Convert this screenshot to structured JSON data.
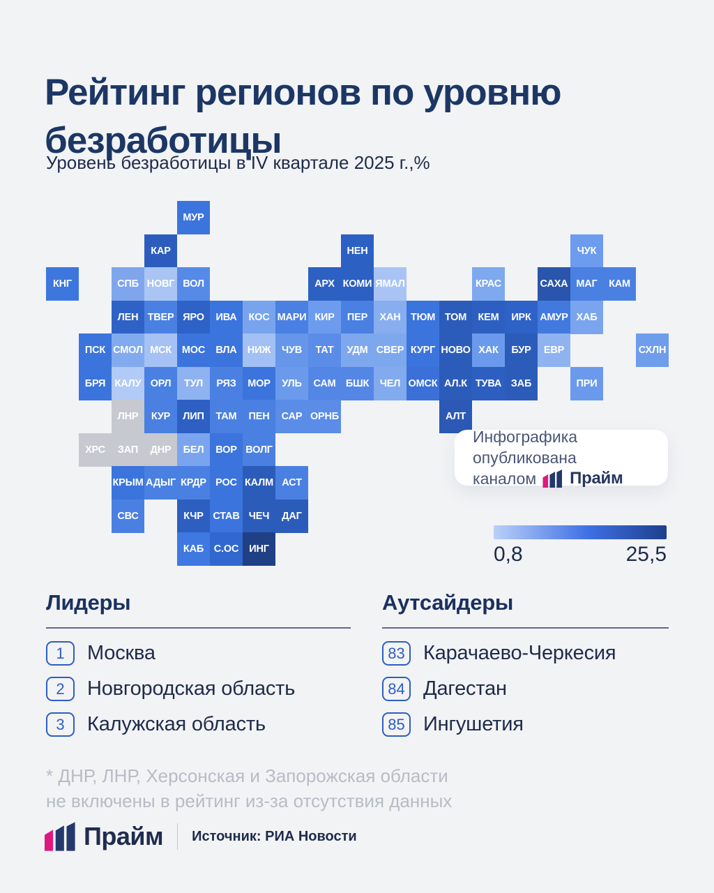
{
  "title": "Рейтинг регионов по уровню безработицы",
  "subtitle": "Уровень безработицы в IV квартале 2025 г.,%",
  "attribution": {
    "line1": "Инфографика опубликована",
    "line2_prefix": "каналом",
    "brand": "Прайм"
  },
  "scale": {
    "min_label": "0,8",
    "max_label": "25,5",
    "gradient_start": "#bad0f8",
    "gradient_mid": "#3e6fe4",
    "gradient_end": "#1e3f8c"
  },
  "leaders": {
    "heading": "Лидеры",
    "items": [
      {
        "rank": "1",
        "name": "Москва"
      },
      {
        "rank": "2",
        "name": "Новгородская область"
      },
      {
        "rank": "3",
        "name": "Калужская область"
      }
    ]
  },
  "outsiders": {
    "heading": "Аутсайдеры",
    "items": [
      {
        "rank": "83",
        "name": "Карачаево-Черкесия"
      },
      {
        "rank": "84",
        "name": "Дагестан"
      },
      {
        "rank": "85",
        "name": "Ингушетия"
      }
    ]
  },
  "footnote": {
    "line1": "* ДНР, ЛНР, Херсонская и Запорожская области",
    "line2": "не включены в рейтинг из-за отсутствия данных"
  },
  "footer": {
    "brand": "Прайм",
    "source": "Источник: РИА Новости"
  },
  "colors": {
    "background": "#f2f3f5",
    "title_navy": "#1c3765",
    "accent_blue": "#2e5ec2",
    "brand_magenta": "#e0187e",
    "brand_navy": "#24396b",
    "excluded_gray": "#c6c9cf",
    "footnote_gray": "#b7bcc5"
  },
  "chart_data": {
    "type": "heatmap",
    "subtype": "tile-grid-cartogram",
    "title": "Рейтинг регионов по уровню безработицы",
    "subtitle": "Уровень безработицы в IV квартале 2025 г.,%",
    "legend_position": "right-middle",
    "scale": {
      "min_label": "0,8",
      "max_label": "25,5",
      "gradient": [
        "#bad0f8",
        "#3e6fe4",
        "#1e3f8c"
      ]
    },
    "excluded_tile_color": "#c6c9cf",
    "tiles": [
      {
        "label": "МУР",
        "row": 0,
        "col": 4,
        "color": "#3b74dc"
      },
      {
        "label": "КАР",
        "row": 1,
        "col": 3,
        "color": "#2c5dbe"
      },
      {
        "label": "НЕН",
        "row": 1,
        "col": 9,
        "color": "#2d60c3"
      },
      {
        "label": "ЧУК",
        "row": 1,
        "col": 16,
        "color": "#6d9bee"
      },
      {
        "label": "КНГ",
        "row": 2,
        "col": 0,
        "color": "#3d77de"
      },
      {
        "label": "СПБ",
        "row": 2,
        "col": 2,
        "color": "#7fa6ec"
      },
      {
        "label": "НОВГ",
        "row": 2,
        "col": 3,
        "color": "#aac5f4"
      },
      {
        "label": "ВОЛ",
        "row": 2,
        "col": 4,
        "color": "#568ae8"
      },
      {
        "label": "АРХ",
        "row": 2,
        "col": 8,
        "color": "#2d60c3"
      },
      {
        "label": "КОМИ",
        "row": 2,
        "col": 9,
        "color": "#2d60c3"
      },
      {
        "label": "ЯМАЛ",
        "row": 2,
        "col": 10,
        "color": "#a9c4f4"
      },
      {
        "label": "КРАС",
        "row": 2,
        "col": 13,
        "color": "#7ea9ee"
      },
      {
        "label": "САХА",
        "row": 2,
        "col": 15,
        "color": "#2a55ac"
      },
      {
        "label": "МАГ",
        "row": 2,
        "col": 16,
        "color": "#4a80e2"
      },
      {
        "label": "КАМ",
        "row": 2,
        "col": 17,
        "color": "#4a80e2"
      },
      {
        "label": "ЛЕН",
        "row": 3,
        "col": 2,
        "color": "#2e62c6"
      },
      {
        "label": "ТВЕР",
        "row": 3,
        "col": 3,
        "color": "#4a80e2"
      },
      {
        "label": "ЯРО",
        "row": 3,
        "col": 4,
        "color": "#2e62c6"
      },
      {
        "label": "ИВА",
        "row": 3,
        "col": 5,
        "color": "#3b74dc"
      },
      {
        "label": "КОС",
        "row": 3,
        "col": 6,
        "color": "#78a4ee"
      },
      {
        "label": "МАРИ",
        "row": 3,
        "col": 7,
        "color": "#4a80e2"
      },
      {
        "label": "КИР",
        "row": 3,
        "col": 8,
        "color": "#6d9bee"
      },
      {
        "label": "ПЕР",
        "row": 3,
        "col": 9,
        "color": "#4a80e2"
      },
      {
        "label": "ХАН",
        "row": 3,
        "col": 10,
        "color": "#88aef0"
      },
      {
        "label": "ТЮМ",
        "row": 3,
        "col": 11,
        "color": "#3b74dc"
      },
      {
        "label": "ТОМ",
        "row": 3,
        "col": 12,
        "color": "#2c5cba"
      },
      {
        "label": "КЕМ",
        "row": 3,
        "col": 13,
        "color": "#2d5fc0"
      },
      {
        "label": "ИРК",
        "row": 3,
        "col": 14,
        "color": "#2e62c6"
      },
      {
        "label": "АМУР",
        "row": 3,
        "col": 15,
        "color": "#4179df"
      },
      {
        "label": "ХАБ",
        "row": 3,
        "col": 16,
        "color": "#7aa5ee"
      },
      {
        "label": "ПСК",
        "row": 4,
        "col": 1,
        "color": "#3b74dc"
      },
      {
        "label": "СМОЛ",
        "row": 4,
        "col": 2,
        "color": "#82aaee"
      },
      {
        "label": "МСК",
        "row": 4,
        "col": 3,
        "color": "#a6c1f4"
      },
      {
        "label": "МОС",
        "row": 4,
        "col": 4,
        "color": "#3b74dc"
      },
      {
        "label": "ВЛА",
        "row": 4,
        "col": 5,
        "color": "#3b74dc"
      },
      {
        "label": "НИЖ",
        "row": 4,
        "col": 6,
        "color": "#a3c0f4"
      },
      {
        "label": "ЧУВ",
        "row": 4,
        "col": 7,
        "color": "#6696ea"
      },
      {
        "label": "ТАТ",
        "row": 4,
        "col": 8,
        "color": "#5a8ce8"
      },
      {
        "label": "УДМ",
        "row": 4,
        "col": 9,
        "color": "#7ea8ee"
      },
      {
        "label": "СВЕР",
        "row": 4,
        "col": 10,
        "color": "#7ea8ee"
      },
      {
        "label": "КУРГ",
        "row": 4,
        "col": 11,
        "color": "#3b74dc"
      },
      {
        "label": "НОВО",
        "row": 4,
        "col": 12,
        "color": "#2c5cba"
      },
      {
        "label": "ХАК",
        "row": 4,
        "col": 13,
        "color": "#6b9aec"
      },
      {
        "label": "БУР",
        "row": 4,
        "col": 14,
        "color": "#2c5cba"
      },
      {
        "label": "ЕВР",
        "row": 4,
        "col": 15,
        "color": "#8fb3f0"
      },
      {
        "label": "СХЛН",
        "row": 4,
        "col": 18,
        "color": "#6e9dec"
      },
      {
        "label": "БРЯ",
        "row": 5,
        "col": 1,
        "color": "#3b74dc"
      },
      {
        "label": "КАЛУ",
        "row": 5,
        "col": 2,
        "color": "#b2caf6"
      },
      {
        "label": "ОРЛ",
        "row": 5,
        "col": 3,
        "color": "#4a80e2"
      },
      {
        "label": "ТУЛ",
        "row": 5,
        "col": 4,
        "color": "#8fb2f0"
      },
      {
        "label": "РЯЗ",
        "row": 5,
        "col": 5,
        "color": "#4a80e2"
      },
      {
        "label": "МОР",
        "row": 5,
        "col": 6,
        "color": "#3b74dc"
      },
      {
        "label": "УЛЬ",
        "row": 5,
        "col": 7,
        "color": "#6b9aec"
      },
      {
        "label": "САМ",
        "row": 5,
        "col": 8,
        "color": "#5486e6"
      },
      {
        "label": "БШК",
        "row": 5,
        "col": 9,
        "color": "#5486e6"
      },
      {
        "label": "ЧЕЛ",
        "row": 5,
        "col": 10,
        "color": "#82aaee"
      },
      {
        "label": "ОМСК",
        "row": 5,
        "col": 11,
        "color": "#3a70d8"
      },
      {
        "label": "АЛ.К",
        "row": 5,
        "col": 12,
        "color": "#2c5cba"
      },
      {
        "label": "ТУВА",
        "row": 5,
        "col": 13,
        "color": "#2d5fc0"
      },
      {
        "label": "ЗАБ",
        "row": 5,
        "col": 14,
        "color": "#2c5cba"
      },
      {
        "label": "ПРИ",
        "row": 5,
        "col": 16,
        "color": "#6b9aec"
      },
      {
        "label": "ЛНР",
        "row": 6,
        "col": 2,
        "color": "#c6c9cf"
      },
      {
        "label": "КУР",
        "row": 6,
        "col": 3,
        "color": "#4a80e2"
      },
      {
        "label": "ЛИП",
        "row": 6,
        "col": 4,
        "color": "#2d60c2"
      },
      {
        "label": "ТАМ",
        "row": 6,
        "col": 5,
        "color": "#4a80e2"
      },
      {
        "label": "ПЕН",
        "row": 6,
        "col": 6,
        "color": "#4a80e2"
      },
      {
        "label": "САР",
        "row": 6,
        "col": 7,
        "color": "#5a8ce8"
      },
      {
        "label": "ОРНБ",
        "row": 6,
        "col": 8,
        "color": "#5a8ce8"
      },
      {
        "label": "АЛТ",
        "row": 6,
        "col": 12,
        "color": "#2b59b5"
      },
      {
        "label": "ХРС",
        "row": 7,
        "col": 1,
        "color": "#c6c9cf"
      },
      {
        "label": "ЗАП",
        "row": 7,
        "col": 2,
        "color": "#c6c9cf"
      },
      {
        "label": "ДНР",
        "row": 7,
        "col": 3,
        "color": "#c6c9cf"
      },
      {
        "label": "БЕЛ",
        "row": 7,
        "col": 4,
        "color": "#7aa5ee"
      },
      {
        "label": "ВОР",
        "row": 7,
        "col": 5,
        "color": "#3b74dc"
      },
      {
        "label": "ВОЛГ",
        "row": 7,
        "col": 6,
        "color": "#4a80e2"
      },
      {
        "label": "КРЫМ",
        "row": 8,
        "col": 2,
        "color": "#3b74dc"
      },
      {
        "label": "АДЫГ",
        "row": 8,
        "col": 3,
        "color": "#4a80e2"
      },
      {
        "label": "КРДР",
        "row": 8,
        "col": 4,
        "color": "#4a80e2"
      },
      {
        "label": "РОС",
        "row": 8,
        "col": 5,
        "color": "#3b74dc"
      },
      {
        "label": "КАЛМ",
        "row": 8,
        "col": 6,
        "color": "#2c5cba"
      },
      {
        "label": "АСТ",
        "row": 8,
        "col": 7,
        "color": "#4a80e2"
      },
      {
        "label": "СВС",
        "row": 9,
        "col": 2,
        "color": "#4a80e2"
      },
      {
        "label": "КЧР",
        "row": 9,
        "col": 4,
        "color": "#2d5fc0"
      },
      {
        "label": "СТАВ",
        "row": 9,
        "col": 5,
        "color": "#3b74dc"
      },
      {
        "label": "ЧЕЧ",
        "row": 9,
        "col": 6,
        "color": "#2c5cba"
      },
      {
        "label": "ДАГ",
        "row": 9,
        "col": 7,
        "color": "#2c5cba"
      },
      {
        "label": "КАБ",
        "row": 10,
        "col": 4,
        "color": "#3f78e0"
      },
      {
        "label": "С.ОС",
        "row": 10,
        "col": 5,
        "color": "#3168cf"
      },
      {
        "label": "ИНГ",
        "row": 10,
        "col": 6,
        "color": "#1f4085"
      }
    ]
  }
}
